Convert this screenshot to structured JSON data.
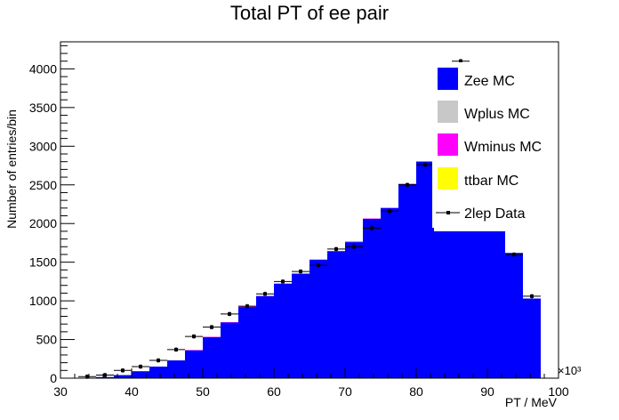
{
  "chart_data": {
    "type": "bar",
    "title": "Total PT of ee pair",
    "xlabel": "PT / MeV",
    "ylabel": "Number of entries/bin",
    "x_multiplier": "×10³",
    "xlim": [
      30,
      100
    ],
    "ylim": [
      0,
      4350
    ],
    "x_ticks": [
      "30",
      "40",
      "50",
      "60",
      "70",
      "80",
      "90",
      "100"
    ],
    "y_ticks": [
      "0",
      "500",
      "1000",
      "1500",
      "2000",
      "2500",
      "3000",
      "3500",
      "4000"
    ],
    "bin_width": 2.5,
    "bin_edges_start": 32.5,
    "series": [
      {
        "name": "Zee MC",
        "color": "#0000ff",
        "values": [
          3,
          15,
          40,
          90,
          150,
          230,
          360,
          530,
          720,
          920,
          1060,
          1220,
          1350,
          1530,
          1640,
          1760,
          2060,
          2200,
          2510,
          2800,
          1900,
          1900,
          1900,
          1900,
          1620,
          1030
        ]
      },
      {
        "name": "Wplus MC",
        "color": "#c8c8c8",
        "values": [
          0,
          0,
          0,
          0,
          0,
          0,
          0,
          0,
          0,
          0,
          0,
          0,
          0,
          0,
          0,
          5,
          0,
          0,
          0,
          0,
          0,
          0,
          0,
          0,
          0,
          0
        ]
      },
      {
        "name": "Wminus MC",
        "color": "#ff00ff",
        "values": [
          0,
          0,
          0,
          0,
          0,
          0,
          5,
          5,
          5,
          5,
          5,
          5,
          5,
          5,
          5,
          5,
          5,
          5,
          5,
          5,
          0,
          0,
          0,
          0,
          0,
          0
        ]
      },
      {
        "name": "ttbar MC",
        "color": "#ffff00",
        "values": [
          0,
          0,
          0,
          0,
          0,
          0,
          0,
          0,
          0,
          0,
          0,
          0,
          0,
          0,
          0,
          0,
          0,
          0,
          0,
          0,
          0,
          0,
          0,
          0,
          0,
          0
        ]
      },
      {
        "name": "2lep Data",
        "color": "#000000",
        "style": "points",
        "values": [
          20,
          40,
          100,
          150,
          230,
          370,
          540,
          660,
          830,
          930,
          1090,
          1250,
          1380,
          1460,
          1670,
          1700,
          1940,
          2160,
          2500,
          2760,
          3200,
          4100,
          3200,
          2300,
          1600,
          1060
        ]
      }
    ],
    "legend": {
      "position": "top-right",
      "entries": [
        "Zee MC",
        "Wplus MC",
        "Wminus MC",
        "ttbar MC",
        "2lep Data"
      ]
    },
    "grid": false
  }
}
